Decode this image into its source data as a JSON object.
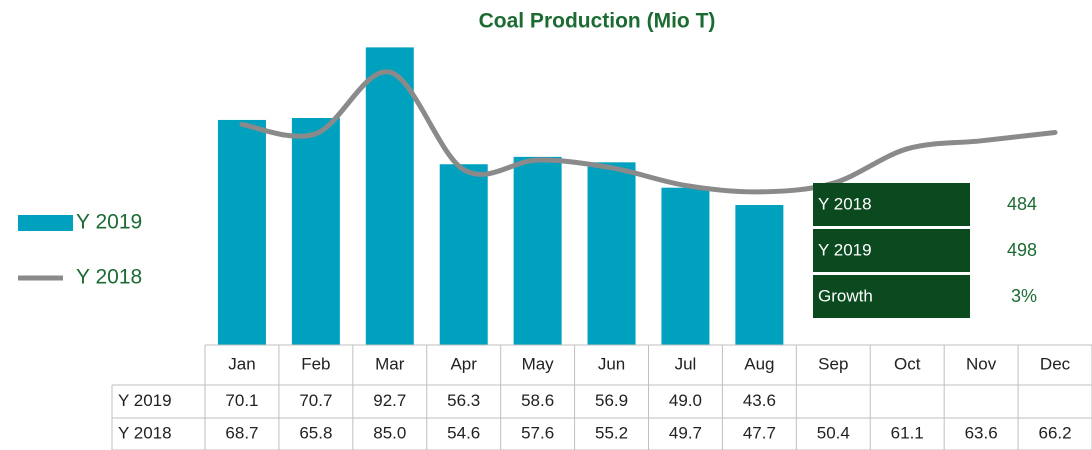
{
  "chart_data": {
    "type": "bar-line",
    "title": "Coal Production (Mio T)",
    "categories": [
      "Jan",
      "Feb",
      "Mar",
      "Apr",
      "May",
      "Jun",
      "Jul",
      "Aug",
      "Sep",
      "Oct",
      "Nov",
      "Dec"
    ],
    "series": [
      {
        "name": "Y 2019",
        "type": "bar",
        "color": "#00a1be",
        "values": [
          70.1,
          70.7,
          92.7,
          56.3,
          58.6,
          56.9,
          49.0,
          43.6,
          null,
          null,
          null,
          null
        ],
        "value_labels": [
          "70.1",
          "70.7",
          "92.7",
          "56.3",
          "58.6",
          "56.9",
          "49.0",
          "43.6",
          null,
          null,
          null,
          null
        ]
      },
      {
        "name": "Y 2018",
        "type": "line",
        "color": "#8a8a8a",
        "values": [
          68.7,
          65.8,
          85.0,
          54.6,
          57.6,
          55.2,
          49.7,
          47.7,
          50.4,
          61.1,
          63.6,
          66.2
        ],
        "value_labels": [
          "68.7",
          "65.8",
          "85.0",
          "54.6",
          "57.6",
          "55.2",
          "49.7",
          "47.7",
          "50.4",
          "61.1",
          "63.6",
          "66.2"
        ]
      }
    ],
    "ylim": [
      0,
      95
    ],
    "summary": {
      "labels": [
        "Y 2018",
        "Y 2019",
        "Growth"
      ],
      "values": [
        484,
        498,
        3
      ],
      "value_labels": [
        "484",
        "498",
        "3%"
      ]
    }
  }
}
